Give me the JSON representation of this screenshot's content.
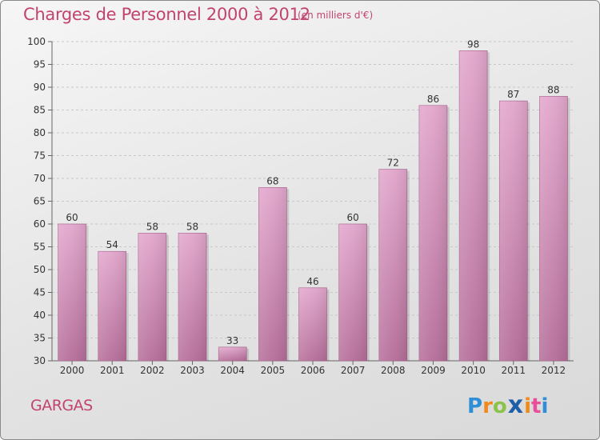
{
  "header": {
    "title": "Charges de Personnel 2000 à 2012",
    "subtitle": "(en milliers d'€)"
  },
  "footer": {
    "commune": "GARGAS",
    "logo_letters": [
      "P",
      "r",
      "o",
      "x",
      "i",
      "t",
      "i"
    ],
    "logo_colors": [
      "#2e8fd6",
      "#f08a1c",
      "#8bc34a",
      "#1e5fa8",
      "#f08a1c",
      "#e94e9a",
      "#2e8fd6"
    ]
  },
  "chart_data": {
    "type": "bar",
    "title": "Charges de Personnel 2000 à 2012",
    "subtitle": "(en milliers d'€)",
    "categories": [
      "2000",
      "2001",
      "2002",
      "2003",
      "2004",
      "2005",
      "2006",
      "2007",
      "2008",
      "2009",
      "2010",
      "2011",
      "2012"
    ],
    "values": [
      60,
      54,
      58,
      58,
      33,
      68,
      46,
      60,
      72,
      86,
      98,
      87,
      88
    ],
    "ylim": [
      30,
      100
    ],
    "yticks": [
      30,
      35,
      40,
      45,
      50,
      55,
      60,
      65,
      70,
      75,
      80,
      85,
      90,
      95,
      100
    ],
    "grid": true,
    "bar_color_top": "#e2a6cc",
    "bar_color_bottom": "#b56e99"
  }
}
